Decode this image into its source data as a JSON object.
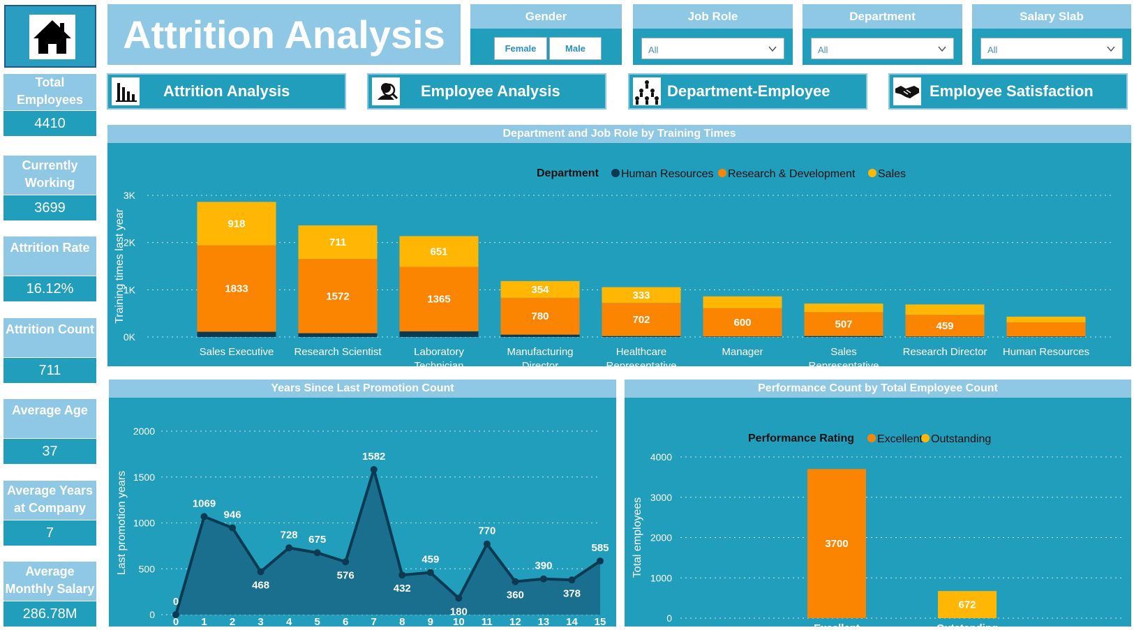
{
  "title": "Attrition Analysis",
  "slicers": {
    "gender": {
      "title": "Gender",
      "options": [
        "Female",
        "Male"
      ]
    },
    "job_role": {
      "title": "Job Role",
      "value": "All"
    },
    "department": {
      "title": "Department",
      "value": "All"
    },
    "salary_slab": {
      "title": "Salary Slab",
      "value": "All"
    }
  },
  "nav": [
    {
      "label": "Attrition Analysis",
      "icon": "bar-chart-icon"
    },
    {
      "label": "Employee Analysis",
      "icon": "employee-search-icon"
    },
    {
      "label": "Department-Employee",
      "icon": "people-group-icon"
    },
    {
      "label": "Employee Satisfaction",
      "icon": "handshake-icon"
    }
  ],
  "kpis": [
    {
      "label": "Total Employees",
      "value": "4410"
    },
    {
      "label": "Currently Working",
      "value": "3699"
    },
    {
      "label": "Attrition Rate",
      "value": "16.12%"
    },
    {
      "label": "Attrition Count",
      "value": "711"
    },
    {
      "label": "Average Age",
      "value": "37"
    },
    {
      "label": "Average Years at Company",
      "value": "7"
    },
    {
      "label": "Average Monthly Salary",
      "value": "286.78M"
    }
  ],
  "colors": {
    "panel": "#229ebd",
    "header": "#8fc8e4",
    "hr": "#0c3a52",
    "rd": "#fb8500",
    "sales": "#ffb703",
    "line": "#0c3a52"
  },
  "chart_data": [
    {
      "type": "bar",
      "title": "Department and Job Role by Training Times",
      "ylabel": "Training times last year",
      "legend_title": "Department",
      "categories": [
        "Sales Executive",
        "Research Scientist",
        "Laboratory Technician",
        "Manufacturing Director",
        "Healthcare Representative",
        "Manager",
        "Sales Representative",
        "Research Director",
        "Human Resources"
      ],
      "y_ticks": [
        "0K",
        "1K",
        "2K",
        "3K"
      ],
      "ylim": [
        0,
        3000
      ],
      "series": [
        {
          "name": "Human Resources",
          "values": [
            110,
            80,
            120,
            50,
            20,
            10,
            20,
            10,
            10
          ],
          "labels": [
            "",
            "",
            "",
            "",
            "",
            "",
            "",
            "",
            ""
          ]
        },
        {
          "name": "Research & Development",
          "values": [
            1833,
            1572,
            1365,
            780,
            702,
            600,
            507,
            459,
            300
          ],
          "labels": [
            "1833",
            "1572",
            "1365",
            "780",
            "702",
            "600",
            "507",
            "459",
            ""
          ]
        },
        {
          "name": "Sales",
          "values": [
            918,
            711,
            651,
            354,
            333,
            250,
            180,
            220,
            120
          ],
          "labels": [
            "918",
            "711",
            "651",
            "354",
            "333",
            "",
            "",
            "",
            ""
          ]
        }
      ]
    },
    {
      "type": "area",
      "title": "Years Since Last Promotion Count",
      "ylabel": "Last promotion years",
      "x": [
        "0",
        "1",
        "2",
        "3",
        "4",
        "5",
        "6",
        "7",
        "8",
        "9",
        "10",
        "11",
        "12",
        "13",
        "14",
        "15"
      ],
      "values": [
        0,
        1069,
        946,
        468,
        728,
        675,
        576,
        1582,
        432,
        459,
        180,
        770,
        360,
        390,
        378,
        585
      ],
      "y_ticks": [
        "0",
        "500",
        "1000",
        "1500",
        "2000"
      ],
      "ylim": [
        0,
        2000
      ]
    },
    {
      "type": "bar",
      "title": "Performance Count by Total Employee Count",
      "ylabel": "Total employees",
      "legend_title": "Performance Rating",
      "categories": [
        "Excellent",
        "Outstanding"
      ],
      "values": [
        3700,
        672
      ],
      "series_names": [
        "Excellent",
        "Outstanding"
      ],
      "y_ticks": [
        "0",
        "1000",
        "2000",
        "3000",
        "4000"
      ],
      "ylim": [
        0,
        4000
      ]
    }
  ]
}
